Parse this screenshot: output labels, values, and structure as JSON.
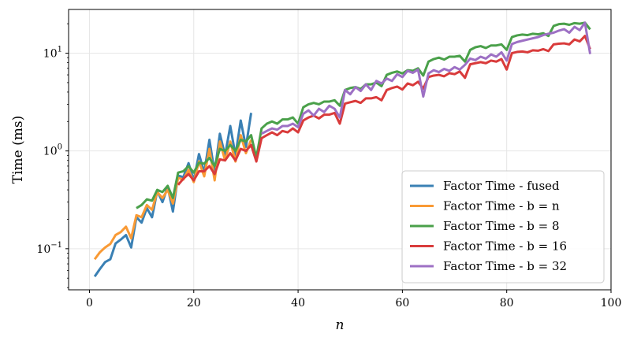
{
  "chart_data": {
    "type": "line",
    "title": "",
    "xlabel": "n",
    "ylabel": "Time (ms)",
    "xlim": [
      -4,
      100
    ],
    "ylim": [
      0.038,
      28
    ],
    "yscale": "log",
    "grid": true,
    "legend_position": "lower-right",
    "x_ticks": [
      0,
      20,
      40,
      60,
      80,
      100
    ],
    "x_tick_labels": [
      "0",
      "20",
      "40",
      "60",
      "80",
      "100"
    ],
    "y_ticks": [
      0.1,
      1,
      10
    ],
    "y_tick_labels": [
      {
        "base": "10",
        "exp": "−1"
      },
      {
        "base": "10",
        "exp": "0"
      },
      {
        "base": "10",
        "exp": "1"
      }
    ],
    "series": [
      {
        "name": "Factor Time - fused",
        "color": "#3a80b4",
        "x": [
          1,
          2,
          3,
          4,
          5,
          6,
          7,
          8,
          9,
          10,
          11,
          12,
          13,
          14,
          15,
          16,
          17,
          18,
          19,
          20,
          21,
          22,
          23,
          24,
          25,
          26,
          27,
          28,
          29,
          30,
          31
        ],
        "y": [
          0.052,
          0.062,
          0.073,
          0.078,
          0.113,
          0.124,
          0.138,
          0.103,
          0.21,
          0.185,
          0.26,
          0.21,
          0.39,
          0.3,
          0.43,
          0.24,
          0.56,
          0.54,
          0.75,
          0.5,
          0.93,
          0.6,
          1.3,
          0.6,
          1.5,
          0.9,
          1.8,
          0.9,
          2.05,
          1.1,
          2.45
        ]
      },
      {
        "name": "Factor Time - b = n",
        "color": "#f99a35",
        "x": [
          1,
          2,
          3,
          4,
          5,
          6,
          7,
          8,
          9,
          10,
          11,
          12,
          13,
          14,
          15,
          16,
          17,
          18,
          19,
          20,
          21,
          22,
          23,
          24,
          25,
          26,
          27,
          28,
          29,
          30,
          31
        ],
        "y": [
          0.078,
          0.092,
          0.103,
          0.112,
          0.138,
          0.148,
          0.168,
          0.128,
          0.22,
          0.21,
          0.28,
          0.25,
          0.38,
          0.33,
          0.4,
          0.29,
          0.53,
          0.51,
          0.64,
          0.48,
          0.78,
          0.55,
          1.05,
          0.5,
          1.25,
          0.8,
          1.25,
          0.78,
          1.45,
          0.95,
          1.3
        ]
      },
      {
        "name": "Factor Time - b = 8",
        "color": "#4aa04a",
        "x": [
          9,
          10,
          11,
          12,
          13,
          14,
          15,
          16,
          17,
          18,
          19,
          20,
          21,
          22,
          23,
          24,
          25,
          26,
          27,
          28,
          29,
          30,
          31,
          32,
          33,
          34,
          35,
          36,
          37,
          38,
          39,
          40,
          41,
          42,
          43,
          44,
          45,
          46,
          47,
          48,
          49,
          50,
          51,
          52,
          53,
          54,
          55,
          56,
          57,
          58,
          59,
          60,
          61,
          62,
          63,
          64,
          65,
          66,
          67,
          68,
          69,
          70,
          71,
          72,
          73,
          74,
          75,
          76,
          77,
          78,
          79,
          80,
          81,
          82,
          83,
          84,
          85,
          86,
          87,
          88,
          89,
          90,
          91,
          92,
          93,
          94,
          95,
          96
        ],
        "y": [
          0.26,
          0.28,
          0.32,
          0.31,
          0.4,
          0.38,
          0.44,
          0.33,
          0.6,
          0.62,
          0.7,
          0.6,
          0.76,
          0.74,
          0.85,
          0.7,
          1.05,
          1.0,
          1.15,
          1.0,
          1.3,
          1.25,
          1.45,
          0.85,
          1.7,
          1.9,
          2.0,
          1.9,
          2.1,
          2.1,
          2.2,
          1.9,
          2.8,
          3.0,
          3.1,
          3.0,
          3.2,
          3.2,
          3.3,
          2.9,
          4.2,
          4.4,
          4.5,
          4.3,
          4.8,
          4.8,
          5.0,
          4.6,
          6.0,
          6.3,
          6.5,
          6.2,
          6.7,
          6.6,
          7.0,
          5.9,
          8.2,
          8.7,
          9.0,
          8.6,
          9.2,
          9.2,
          9.4,
          8.2,
          10.8,
          11.5,
          11.8,
          11.3,
          12.0,
          12.0,
          12.3,
          10.8,
          14.6,
          15.2,
          15.5,
          15.3,
          15.8,
          15.6,
          16.0,
          15.0,
          19.0,
          19.8,
          20.0,
          19.5,
          20.3,
          20.0,
          20.5,
          17.5
        ]
      },
      {
        "name": "Factor Time - b = 16",
        "color": "#d93b3b",
        "x": [
          17,
          18,
          19,
          20,
          21,
          22,
          23,
          24,
          25,
          26,
          27,
          28,
          29,
          30,
          31,
          32,
          33,
          34,
          35,
          36,
          37,
          38,
          39,
          40,
          41,
          42,
          43,
          44,
          45,
          46,
          47,
          48,
          49,
          50,
          51,
          52,
          53,
          54,
          55,
          56,
          57,
          58,
          59,
          60,
          61,
          62,
          63,
          64,
          65,
          66,
          67,
          68,
          69,
          70,
          71,
          72,
          73,
          74,
          75,
          76,
          77,
          78,
          79,
          80,
          81,
          82,
          83,
          84,
          85,
          86,
          87,
          88,
          89,
          90,
          91,
          92,
          93,
          94,
          95,
          96
        ],
        "y": [
          0.45,
          0.52,
          0.58,
          0.5,
          0.62,
          0.62,
          0.7,
          0.58,
          0.82,
          0.8,
          0.95,
          0.8,
          1.05,
          1.0,
          1.15,
          0.78,
          1.35,
          1.45,
          1.55,
          1.45,
          1.6,
          1.55,
          1.7,
          1.55,
          2.05,
          2.2,
          2.3,
          2.15,
          2.35,
          2.35,
          2.45,
          1.9,
          3.05,
          3.15,
          3.25,
          3.1,
          3.45,
          3.45,
          3.55,
          3.3,
          4.2,
          4.4,
          4.55,
          4.25,
          4.9,
          4.7,
          5.1,
          4.35,
          5.7,
          5.9,
          6.0,
          5.8,
          6.25,
          6.1,
          6.5,
          5.6,
          7.7,
          7.9,
          8.1,
          7.9,
          8.4,
          8.2,
          8.7,
          6.8,
          10.0,
          10.3,
          10.4,
          10.2,
          10.7,
          10.6,
          11.0,
          10.5,
          12.3,
          12.5,
          12.6,
          12.3,
          13.8,
          13.2,
          15.0,
          11.0
        ]
      },
      {
        "name": "Factor Time - b = 32",
        "color": "#9d70c4",
        "x": [
          33,
          34,
          35,
          36,
          37,
          38,
          39,
          40,
          41,
          42,
          43,
          44,
          45,
          46,
          47,
          48,
          49,
          50,
          51,
          52,
          53,
          54,
          55,
          56,
          57,
          58,
          59,
          60,
          61,
          62,
          63,
          64,
          65,
          66,
          67,
          68,
          69,
          70,
          71,
          72,
          73,
          74,
          75,
          76,
          77,
          78,
          79,
          80,
          81,
          82,
          83,
          84,
          85,
          86,
          87,
          88,
          89,
          90,
          91,
          92,
          93,
          94,
          95,
          96
        ],
        "y": [
          1.5,
          1.6,
          1.7,
          1.65,
          1.8,
          1.8,
          1.9,
          1.75,
          2.4,
          2.6,
          2.3,
          2.7,
          2.5,
          2.9,
          2.7,
          2.2,
          4.2,
          3.8,
          4.5,
          4.1,
          4.8,
          4.2,
          5.2,
          4.9,
          5.5,
          5.2,
          6.1,
          5.7,
          6.6,
          6.3,
          6.8,
          3.6,
          6.2,
          6.7,
          6.4,
          6.9,
          6.6,
          7.2,
          6.8,
          7.6,
          8.8,
          8.5,
          9.2,
          8.8,
          9.7,
          9.2,
          10.2,
          8.4,
          12.4,
          13.0,
          13.4,
          13.8,
          14.2,
          14.6,
          15.3,
          15.8,
          16.2,
          17.0,
          17.6,
          16.2,
          18.6,
          17.2,
          20.5,
          9.8
        ]
      }
    ]
  }
}
